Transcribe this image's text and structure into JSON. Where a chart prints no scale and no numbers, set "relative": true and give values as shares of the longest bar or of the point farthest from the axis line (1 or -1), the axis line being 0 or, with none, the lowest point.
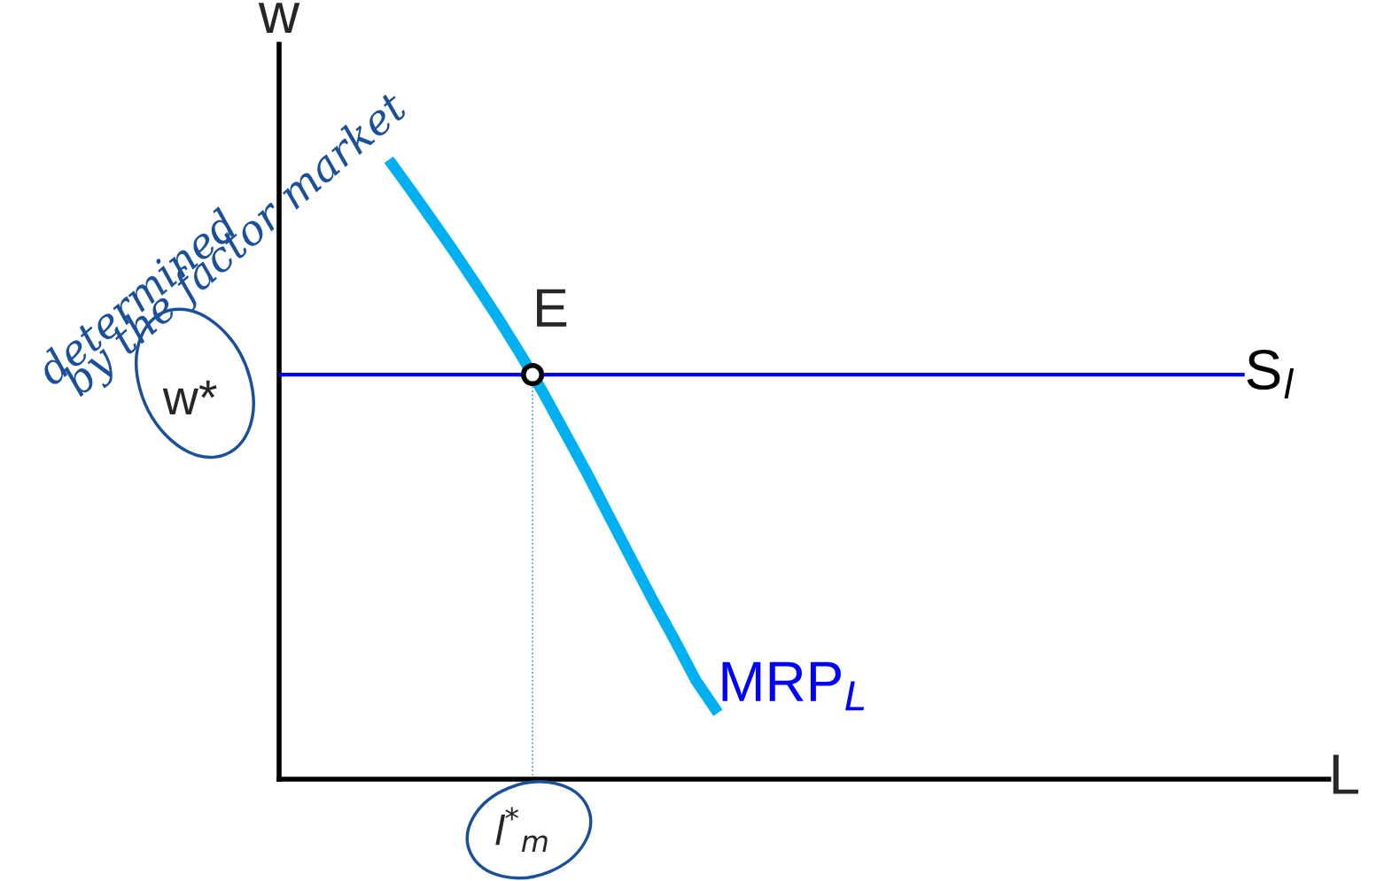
{
  "chart_data": {
    "type": "line",
    "relative": true,
    "xlabel": "L",
    "ylabel": "w",
    "categories": [
      null,
      null,
      null,
      null,
      null,
      null,
      null,
      null,
      null,
      null,
      null,
      null,
      null,
      null,
      null,
      null,
      null,
      null,
      null,
      null,
      null,
      null,
      null,
      null,
      null,
      null,
      null,
      null,
      null,
      null,
      null,
      null,
      null,
      null,
      null,
      null,
      null,
      null,
      null,
      null,
      null,
      null,
      null,
      null,
      null
    ],
    "series": [
      {
        "name": "MRP$_{L}$",
        "color": "#00b0f0",
        "values": [
          null,
          null,
          null,
          null,
          null,
          1,
          0.951,
          0.901,
          0.85,
          0.797,
          0.743,
          0.686,
          0.626,
          0.561,
          0.496,
          0.427,
          0.359,
          0.291,
          0.226,
          0.159,
          0.107,
          null,
          null,
          null,
          null,
          null,
          null,
          null,
          null,
          null,
          null,
          null,
          null,
          null,
          null,
          null,
          null,
          null,
          null,
          null,
          null,
          null,
          null,
          null,
          null
        ]
      },
      {
        "name": "S$_{l}$",
        "color": "#0000ff",
        "values": [
          0.653,
          0.653,
          0.653,
          0.653,
          0.653,
          0.653,
          0.653,
          0.653,
          0.653,
          0.653,
          0.653,
          0.653,
          0.653,
          0.653,
          0.653,
          0.653,
          0.653,
          0.653,
          0.653,
          0.653,
          0.653,
          0.653,
          0.653,
          0.653,
          0.653,
          0.653,
          0.653,
          0.653,
          0.653,
          0.653,
          0.653,
          0.653,
          0.653,
          0.653,
          0.653,
          0.653,
          0.653,
          0.653,
          0.653,
          0.653,
          0.653,
          0.653,
          0.653,
          0.653,
          0.653
        ]
      }
    ],
    "annotations": [
      "E",
      "w*",
      "l$^{*}$$_{m}$",
      "determined",
      "by the factor market"
    ]
  }
}
